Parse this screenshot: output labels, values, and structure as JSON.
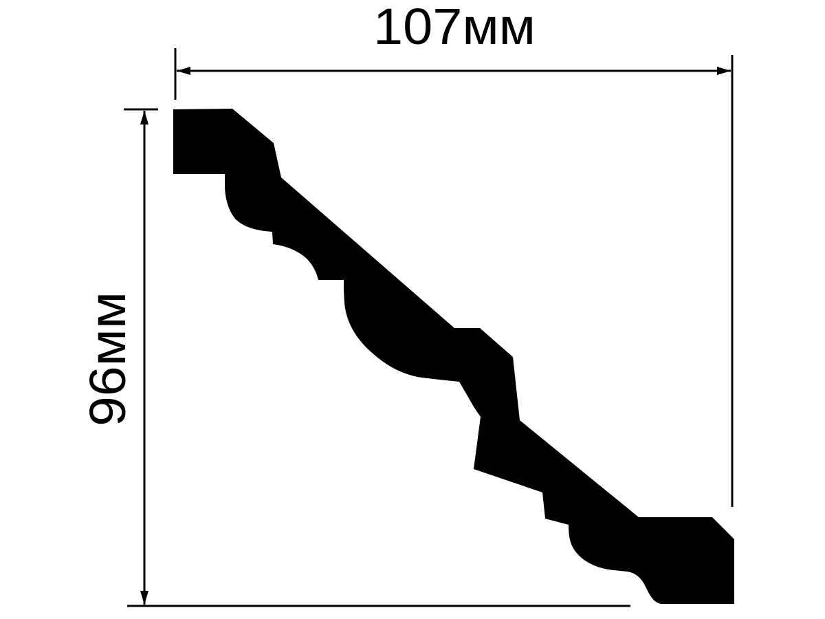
{
  "diagram": {
    "width_label": "107мм",
    "height_label": "96мм",
    "colors": {
      "profile": "#000000",
      "lines": "#000000",
      "background": "#ffffff"
    }
  }
}
